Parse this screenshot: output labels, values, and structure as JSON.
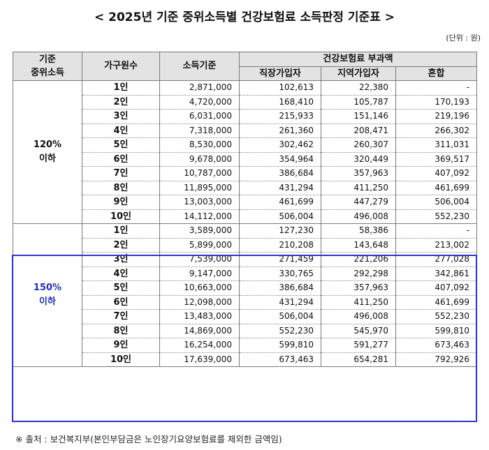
{
  "title": "< 2025년 기준 중위소득별 건강보험료 소득판정 기준표 >",
  "unit": "(단위 : 원)",
  "headers": {
    "group": "기준\n중위소득",
    "household": "가구원수",
    "income": "소득기준",
    "premium": "건강보험료 부과액",
    "employee": "직장가입자",
    "regional": "지역가입자",
    "mixed": "혼합"
  },
  "groups": [
    {
      "label": "120%\n이하",
      "rows": [
        {
          "household": "1인",
          "income": "2,871,000",
          "employee": "102,613",
          "regional": "22,380",
          "mixed": "-"
        },
        {
          "household": "2인",
          "income": "4,720,000",
          "employee": "168,410",
          "regional": "105,787",
          "mixed": "170,193"
        },
        {
          "household": "3인",
          "income": "6,031,000",
          "employee": "215,933",
          "regional": "151,146",
          "mixed": "219,196"
        },
        {
          "household": "4인",
          "income": "7,318,000",
          "employee": "261,360",
          "regional": "208,471",
          "mixed": "266,302"
        },
        {
          "household": "5인",
          "income": "8,530,000",
          "employee": "302,462",
          "regional": "260,307",
          "mixed": "311,031"
        },
        {
          "household": "6인",
          "income": "9,678,000",
          "employee": "354,964",
          "regional": "320,449",
          "mixed": "369,517"
        },
        {
          "household": "7인",
          "income": "10,787,000",
          "employee": "386,684",
          "regional": "357,963",
          "mixed": "407,092"
        },
        {
          "household": "8인",
          "income": "11,895,000",
          "employee": "431,294",
          "regional": "411,250",
          "mixed": "461,699"
        },
        {
          "household": "9인",
          "income": "13,003,000",
          "employee": "461,699",
          "regional": "447,279",
          "mixed": "506,004"
        },
        {
          "household": "10인",
          "income": "14,112,000",
          "employee": "506,004",
          "regional": "496,008",
          "mixed": "552,230"
        }
      ]
    },
    {
      "label": "150%\n이하",
      "rows": [
        {
          "household": "1인",
          "income": "3,589,000",
          "employee": "127,230",
          "regional": "58,386",
          "mixed": "-"
        },
        {
          "household": "2인",
          "income": "5,899,000",
          "employee": "210,208",
          "regional": "143,648",
          "mixed": "213,002"
        },
        {
          "household": "3인",
          "income": "7,539,000",
          "employee": "271,459",
          "regional": "221,206",
          "mixed": "277,028"
        },
        {
          "household": "4인",
          "income": "9,147,000",
          "employee": "330,765",
          "regional": "292,298",
          "mixed": "342,861"
        },
        {
          "household": "5인",
          "income": "10,663,000",
          "employee": "386,684",
          "regional": "357,963",
          "mixed": "407,092"
        },
        {
          "household": "6인",
          "income": "12,098,000",
          "employee": "431,294",
          "regional": "411,250",
          "mixed": "461,699"
        },
        {
          "household": "7인",
          "income": "13,483,000",
          "employee": "506,004",
          "regional": "496,008",
          "mixed": "552,230"
        },
        {
          "household": "8인",
          "income": "14,869,000",
          "employee": "552,230",
          "regional": "545,970",
          "mixed": "599,810"
        },
        {
          "household": "9인",
          "income": "16,254,000",
          "employee": "599,810",
          "regional": "591,277",
          "mixed": "673,463"
        },
        {
          "household": "10인",
          "income": "17,639,000",
          "employee": "673,463",
          "regional": "654,281",
          "mixed": "792,926"
        }
      ]
    }
  ],
  "note": "※ 출처 : 보건복지부(본인부담금은 노인장기요양보험료를 제외한 금액임)",
  "colors": {
    "highlight": "#2a35c9",
    "group2_text": "#1f2fbf",
    "header_bg": "#e3e3e3"
  }
}
